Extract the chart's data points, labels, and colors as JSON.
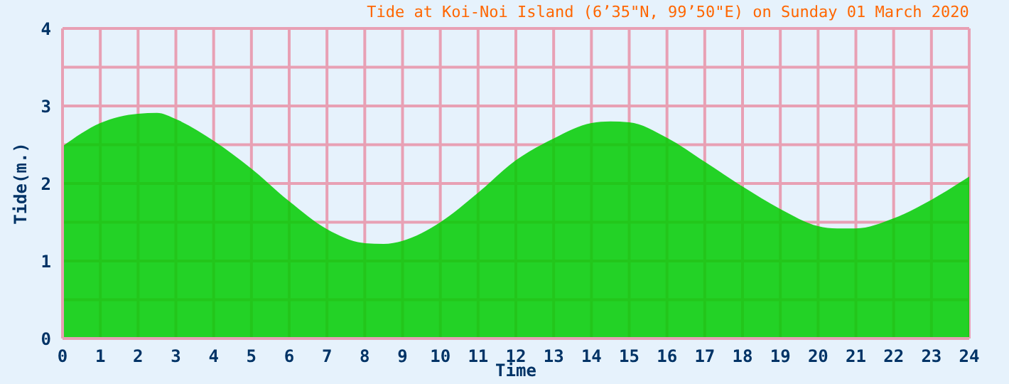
{
  "chart_data": {
    "type": "area",
    "title": "Tide at Koi-Noi Island (6’35\"N, 99’50\"E) on Sunday 01 March 2020",
    "xlabel": "Time",
    "ylabel": "Tide(m.)",
    "x": [
      0,
      1,
      2,
      2.5,
      3,
      4,
      5,
      6,
      7,
      8,
      8.5,
      9,
      10,
      11,
      12,
      13,
      14,
      14.5,
      15,
      16,
      17,
      18,
      19,
      20,
      20.5,
      21,
      22,
      23,
      24
    ],
    "series": [
      {
        "color": "#00cc00",
        "values": [
          2.48,
          2.78,
          2.9,
          2.91,
          2.83,
          2.55,
          2.19,
          1.77,
          1.41,
          1.23,
          1.22,
          1.26,
          1.5,
          1.88,
          2.3,
          2.58,
          2.78,
          2.8,
          2.79,
          2.59,
          2.28,
          1.96,
          1.67,
          1.45,
          1.42,
          1.42,
          1.55,
          1.79,
          2.09
        ]
      }
    ],
    "xlim": [
      0,
      24
    ],
    "xticks": [
      0,
      1,
      2,
      3,
      4,
      5,
      6,
      7,
      8,
      9,
      10,
      11,
      12,
      13,
      14,
      15,
      16,
      17,
      18,
      19,
      20,
      21,
      22,
      23,
      24
    ],
    "ylim": [
      0,
      4
    ],
    "yticks": [
      0,
      {
        "value": 0.5,
        "label": null
      },
      1,
      {
        "value": 1.5,
        "label": null
      },
      2,
      {
        "value": 2.5,
        "label": null
      },
      3,
      {
        "value": 3.5,
        "label": null
      },
      4
    ],
    "grid": true
  }
}
